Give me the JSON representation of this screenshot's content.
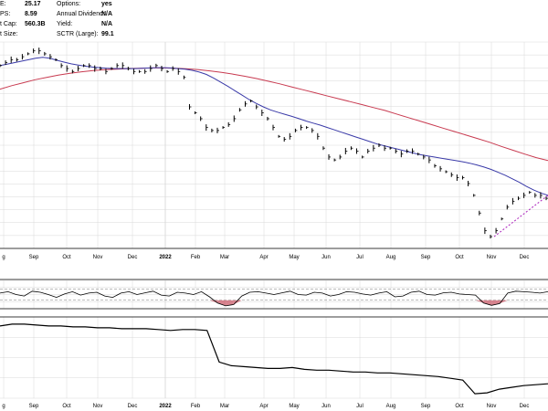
{
  "info": {
    "left": [
      {
        "label": "E:",
        "value": "25.17"
      },
      {
        "label": "PS:",
        "value": "8.59"
      },
      {
        "label": "t Cap:",
        "value": "560.3B"
      },
      {
        "label": "t Size:",
        "value": ""
      }
    ],
    "right": [
      {
        "label": "Options:",
        "value": "yes"
      },
      {
        "label": "Annual Dividend:",
        "value": "N/A"
      },
      {
        "label": "Yield:",
        "value": "N/A"
      },
      {
        "label": "SCTR (Large):",
        "value": "99.1"
      }
    ]
  },
  "colors": {
    "price": "#000000",
    "ma_short": "#3a3aa8",
    "ma_long": "#c83a50",
    "trend": "#b030c0",
    "grid": "#d8d8d8",
    "oversold_fill": "#c85060"
  },
  "chart_data": [
    {
      "type": "line",
      "panel": "price",
      "x_ticks": [
        "g",
        "Sep",
        "Oct",
        "Nov",
        "Dec",
        "2022",
        "Feb",
        "Mar",
        "Apr",
        "May",
        "Jun",
        "Jul",
        "Aug",
        "Sep",
        "Oct",
        "Nov",
        "Dec"
      ],
      "series": [
        {
          "role": "price-bars",
          "values": [
            62,
            63,
            64,
            64,
            65,
            66,
            67,
            67,
            66,
            65,
            64,
            62,
            61,
            60,
            61,
            62,
            62,
            61,
            61,
            60,
            61,
            62,
            62,
            61,
            60,
            60,
            60,
            61,
            62,
            61,
            60,
            61,
            60,
            58,
            48,
            46,
            44,
            41,
            40,
            40,
            41,
            42,
            44,
            47,
            49,
            50,
            48,
            46,
            44,
            41,
            38,
            37,
            38,
            40,
            41,
            41,
            40,
            38,
            34,
            31,
            30,
            31,
            33,
            34,
            33,
            31,
            33,
            34,
            35,
            34,
            34,
            33,
            32,
            33,
            33,
            32,
            31,
            30,
            28,
            27,
            26,
            25,
            24,
            24,
            22,
            18,
            12,
            6,
            4,
            6,
            10,
            14,
            16,
            17,
            18,
            19,
            18,
            18,
            17
          ]
        },
        {
          "role": "moving-average-short",
          "values": [
            62,
            62.5,
            63,
            63.5,
            64,
            64.5,
            64.8,
            64.5,
            63.8,
            63.2,
            62.6,
            62.2,
            61.8,
            61.5,
            61.3,
            61.1,
            61,
            61,
            61,
            61,
            61.1,
            61.2,
            61.3,
            61.3,
            61.2,
            61,
            60.8,
            60.4,
            59.8,
            59,
            57.8,
            56.4,
            55,
            53.5,
            52,
            50.5,
            49.2,
            48,
            47,
            46.2,
            45.5,
            44.8,
            44,
            43.2,
            42.5,
            41.8,
            41,
            40.2,
            39.4,
            38.6,
            37.8,
            37,
            36.2,
            35.4,
            34.8,
            34.2,
            33.6,
            33,
            32.4,
            31.8,
            31.4,
            31,
            30.6,
            30.2,
            29.8,
            29.4,
            28.9,
            28.3,
            27.6,
            26.8,
            25.8,
            24.8,
            23.6,
            22.4,
            21,
            19.8,
            18.8,
            18
          ]
        },
        {
          "role": "moving-average-long",
          "values": [
            54,
            55.2,
            56.2,
            57.2,
            58,
            58.8,
            59.4,
            59.9,
            60.3,
            60.6,
            60.8,
            61,
            61.1,
            61.2,
            61.2,
            61.1,
            60.9,
            60.6,
            60.2,
            59.7,
            59.1,
            58.4,
            57.6,
            56.7,
            55.8,
            54.8,
            53.8,
            52.8,
            51.8,
            50.8,
            49.8,
            48.8,
            47.8,
            46.8,
            45.6,
            44.4,
            43.2,
            42,
            40.8,
            39.6,
            38.4,
            37.2,
            36,
            34.6,
            33.3,
            32,
            30.8,
            29.8
          ]
        },
        {
          "role": "trendline",
          "values": [
            4,
            18
          ]
        }
      ]
    },
    {
      "type": "line",
      "panel": "oscillator",
      "series": [
        {
          "role": "oscillator",
          "values": [
            55,
            60,
            50,
            45,
            62,
            58,
            50,
            40,
            52,
            60,
            48,
            55,
            58,
            45,
            40,
            55,
            60,
            50,
            56,
            62,
            48,
            45,
            58,
            55,
            50,
            60,
            42,
            20,
            10,
            15,
            45,
            58,
            60,
            55,
            50,
            56,
            62,
            50,
            48,
            58,
            55,
            45,
            50,
            60,
            58,
            52,
            48,
            55,
            60,
            42,
            45,
            58,
            62,
            50,
            48,
            56,
            58,
            52,
            50,
            48,
            20,
            12,
            18,
            55,
            62,
            60,
            58,
            55,
            60
          ]
        }
      ]
    },
    {
      "type": "line",
      "panel": "relative-strength",
      "x_ticks": [
        "g",
        "Sep",
        "Oct",
        "Nov",
        "Dec",
        "2022",
        "Feb",
        "Mar",
        "Apr",
        "May",
        "Jun",
        "Jul",
        "Aug",
        "Sep",
        "Oct",
        "Nov",
        "Dec"
      ],
      "series": [
        {
          "role": "ratio",
          "values": [
            80,
            82,
            82,
            81,
            80,
            80,
            79,
            79,
            78,
            78,
            77,
            77,
            77,
            76,
            75,
            76,
            76,
            75,
            40,
            36,
            35,
            34,
            33,
            33,
            34,
            32,
            31,
            31,
            30,
            29,
            29,
            28,
            28,
            27,
            26,
            25,
            24,
            22,
            20,
            5,
            6,
            10,
            12,
            14,
            15,
            16
          ]
        }
      ]
    }
  ]
}
